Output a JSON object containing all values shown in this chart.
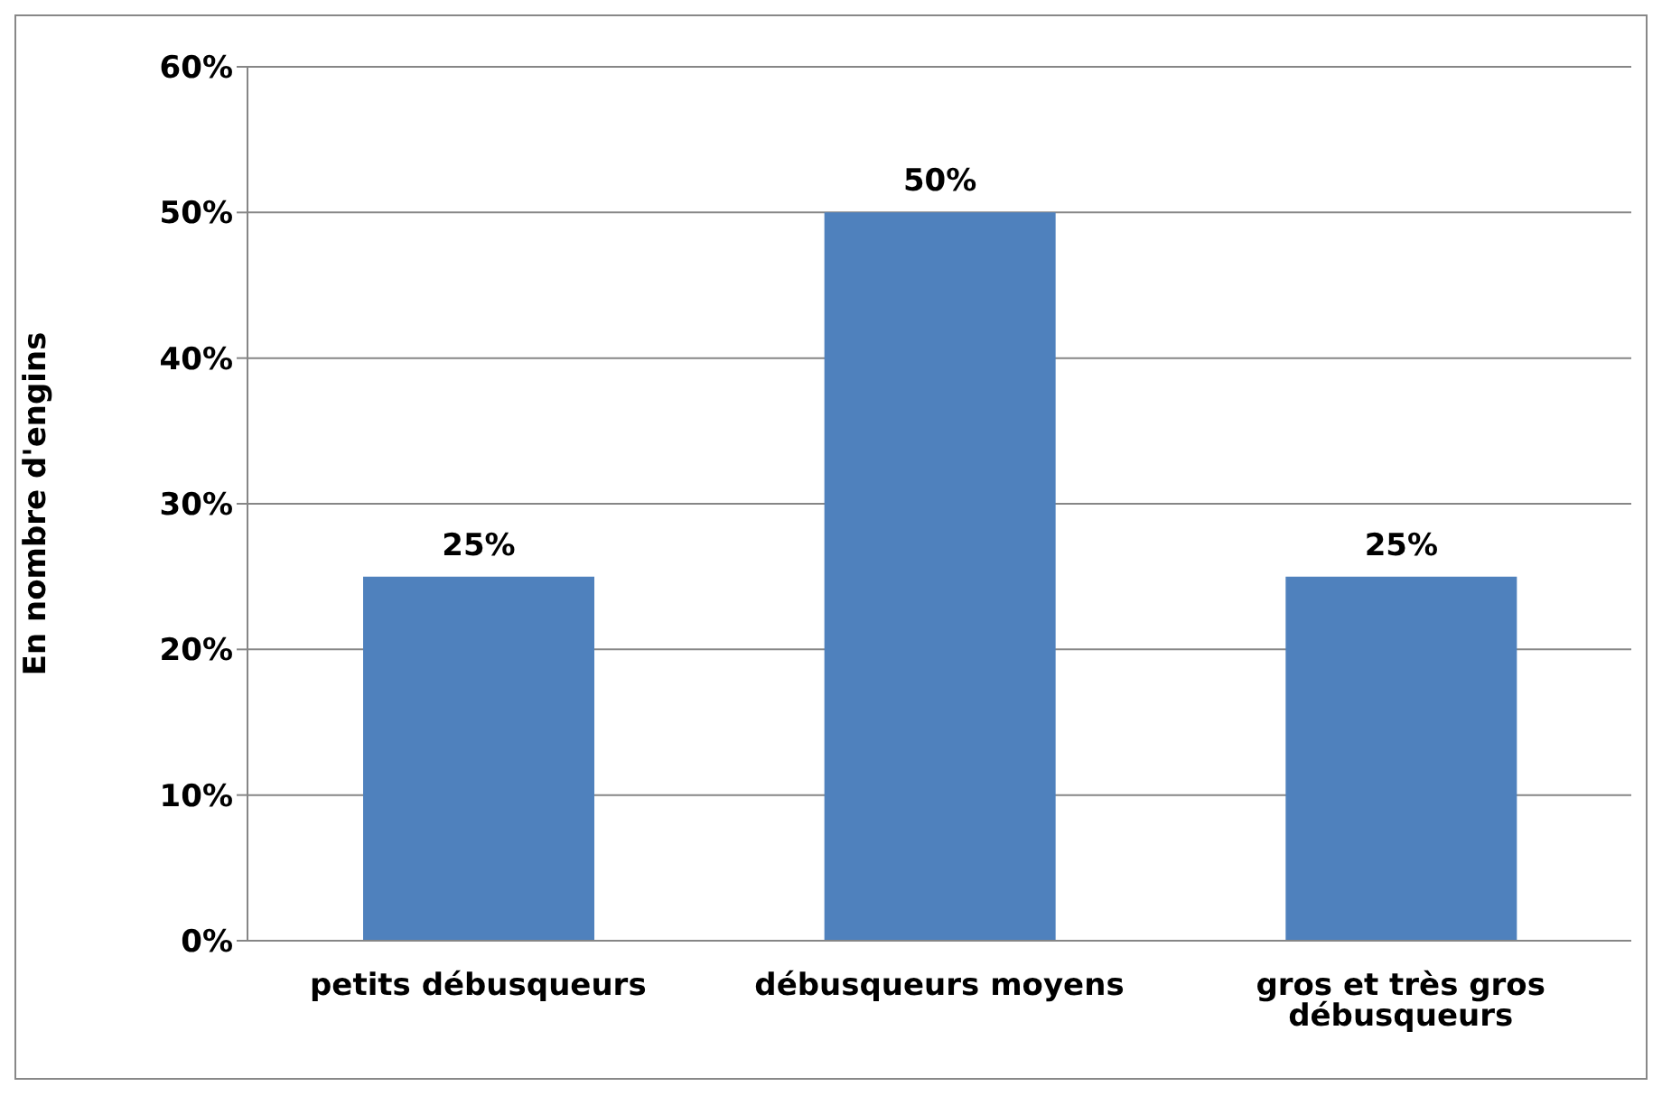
{
  "chart_data": {
    "type": "bar",
    "ylabel": "En nombre d'engins",
    "categories": [
      "petits débusqueurs",
      "débusqueurs moyens",
      "gros et très gros débusqueurs"
    ],
    "values": [
      25,
      50,
      25
    ],
    "color": "#4f81bd",
    "value_labels": [
      "25%",
      "50%",
      "25%"
    ],
    "ylim": [
      0,
      60
    ],
    "yticks": [
      {
        "value": 0,
        "label": "0%"
      },
      {
        "value": 10,
        "label": "10%"
      },
      {
        "value": 20,
        "label": "20%"
      },
      {
        "value": 30,
        "label": "30%"
      },
      {
        "value": 40,
        "label": "40%"
      },
      {
        "value": 50,
        "label": "50%"
      },
      {
        "value": 60,
        "label": "60%"
      }
    ],
    "grid": "y",
    "legend": false
  }
}
